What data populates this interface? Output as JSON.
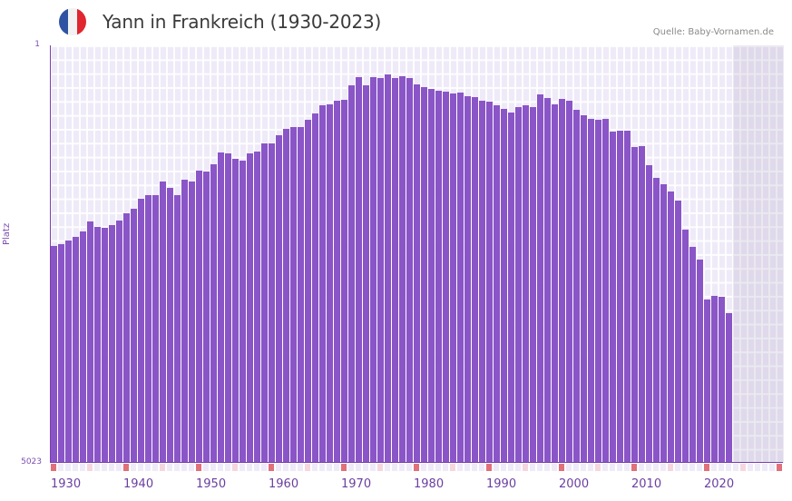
{
  "header": {
    "title": "Yann in Frankreich (1930-2023)",
    "source": "Quelle: Baby-Vornamen.de",
    "flag_colors": [
      "#2f52a3",
      "#f2f2f2",
      "#e0262f"
    ]
  },
  "axis": {
    "y_title": "Platz",
    "y_top_label": "1",
    "y_bottom_label": "5023"
  },
  "colors": {
    "bar": "#8a55c7",
    "decade_tick": "#e0707a",
    "half_decade_tick": "#f5d6df",
    "year_tick": "#efeaf8"
  },
  "chart_data": {
    "type": "bar",
    "title": "Yann in Frankreich (1930-2023)",
    "xlabel": "",
    "ylabel": "Platz",
    "ylim": [
      5023,
      1
    ],
    "y_inverted": true,
    "x_range": [
      1930,
      2030
    ],
    "future_shaded_from": 2024,
    "x_tick_labels": [
      "1930",
      "1940",
      "1950",
      "1960",
      "1970",
      "1980",
      "1990",
      "2000",
      "2010",
      "2020"
    ],
    "categories": [
      1930,
      1931,
      1932,
      1933,
      1934,
      1935,
      1936,
      1937,
      1938,
      1939,
      1940,
      1941,
      1942,
      1943,
      1944,
      1945,
      1946,
      1947,
      1948,
      1949,
      1950,
      1951,
      1952,
      1953,
      1954,
      1955,
      1956,
      1957,
      1958,
      1959,
      1960,
      1961,
      1962,
      1963,
      1964,
      1965,
      1966,
      1967,
      1968,
      1969,
      1970,
      1971,
      1972,
      1973,
      1974,
      1975,
      1976,
      1977,
      1978,
      1979,
      1980,
      1981,
      1982,
      1983,
      1984,
      1985,
      1986,
      1987,
      1988,
      1989,
      1990,
      1991,
      1992,
      1993,
      1994,
      1995,
      1996,
      1997,
      1998,
      1999,
      2000,
      2001,
      2002,
      2003,
      2004,
      2005,
      2006,
      2007,
      2008,
      2009,
      2010,
      2011,
      2012,
      2013,
      2014,
      2015,
      2016,
      2017,
      2018,
      2019,
      2020,
      2021,
      2022,
      2023
    ],
    "values": [
      2414,
      2392,
      2348,
      2305,
      2239,
      2119,
      2185,
      2195,
      2163,
      2108,
      2021,
      1966,
      1846,
      1802,
      1802,
      1639,
      1715,
      1802,
      1617,
      1639,
      1508,
      1519,
      1431,
      1289,
      1300,
      1366,
      1388,
      1300,
      1278,
      1180,
      1180,
      1082,
      1005,
      984,
      984,
      896,
      820,
      722,
      711,
      667,
      656,
      481,
      383,
      481,
      383,
      394,
      350,
      394,
      372,
      394,
      470,
      503,
      525,
      547,
      558,
      580,
      569,
      612,
      623,
      667,
      678,
      722,
      765,
      809,
      743,
      722,
      743,
      591,
      634,
      711,
      645,
      667,
      776,
      842,
      885,
      896,
      885,
      1038,
      1027,
      1027,
      1224,
      1213,
      1442,
      1595,
      1671,
      1759,
      1868,
      2217,
      2425,
      2578,
      3058,
      3014,
      3025,
      3222
    ]
  }
}
